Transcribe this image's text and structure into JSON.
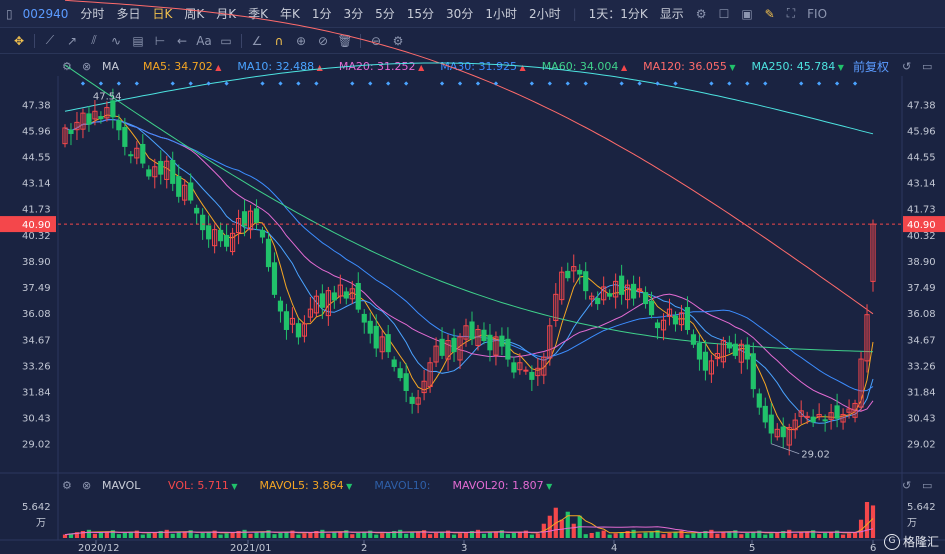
{
  "topbar": {
    "code": "002940",
    "periods": [
      "分时",
      "多日",
      "日K",
      "周K",
      "月K",
      "季K",
      "年K",
      "1分",
      "3分",
      "5分",
      "15分",
      "30分",
      "1小时",
      "2小时"
    ],
    "active_period": "日K",
    "range": "1天：1分K",
    "display": "显示",
    "fio": "FIO"
  },
  "ma_row": {
    "label": "MA",
    "items": [
      {
        "name": "MA5: 34.702",
        "dir": "up",
        "color": "#f5a623"
      },
      {
        "name": "MA10: 32.488",
        "dir": "up",
        "color": "#4aa3ff"
      },
      {
        "name": "MA20: 31.252",
        "dir": "up",
        "color": "#e36bd3"
      },
      {
        "name": "MA30: 31.925",
        "dir": "up",
        "color": "#3c8dff"
      },
      {
        "name": "MA60: 34.004",
        "dir": "up",
        "color": "#3fd18b"
      },
      {
        "name": "MA120: 36.055",
        "dir": "dn",
        "color": "#ff6b6b"
      },
      {
        "name": "MA250: 45.784",
        "dir": "dn",
        "color": "#4de3e0"
      }
    ],
    "adjust": "前复权"
  },
  "vol_row": {
    "label": "MAVOL",
    "items": [
      {
        "name": "VOL: 5.711",
        "dir": "dn",
        "color": "#f4474b"
      },
      {
        "name": "MAVOL5: 3.864",
        "dir": "dn",
        "color": "#f5a623"
      },
      {
        "name": "MAVOL10:",
        "dir": "",
        "color": "#2e5fa8"
      },
      {
        "name": "MAVOL20: 1.807",
        "dir": "dn",
        "color": "#e36bd3"
      }
    ]
  },
  "chart_data": {
    "type": "candlestick",
    "y_ticks": [
      "47.38",
      "45.96",
      "44.55",
      "43.14",
      "41.73",
      "40.32",
      "38.90",
      "37.49",
      "36.08",
      "34.67",
      "33.26",
      "31.84",
      "30.43",
      "29.02"
    ],
    "ylim": [
      27.6,
      48.8
    ],
    "current_price": "40.90",
    "current_value": 40.9,
    "high_label": "47.54",
    "high_value": 47.54,
    "low_label": "29.02",
    "low_value": 29.02,
    "vol_tick": "5.642",
    "vol_unit": "万",
    "vol_max": 7.0,
    "x_labels": [
      "2020/12",
      "2021/01",
      "2",
      "3",
      "4",
      "5",
      "6"
    ],
    "closes": [
      46.1,
      45.8,
      46.4,
      46.9,
      46.3,
      47.0,
      46.6,
      47.2,
      46.7,
      46.0,
      45.1,
      44.6,
      45.0,
      44.2,
      43.5,
      44.0,
      43.6,
      44.3,
      43.1,
      42.4,
      43.0,
      42.2,
      41.5,
      40.6,
      40.1,
      40.6,
      40.0,
      39.7,
      40.4,
      41.2,
      40.8,
      41.6,
      41.0,
      40.2,
      38.6,
      37.1,
      36.2,
      35.2,
      35.8,
      34.8,
      35.5,
      36.3,
      37.0,
      36.4,
      37.3,
      36.8,
      37.6,
      36.9,
      37.4,
      36.3,
      35.6,
      35.0,
      34.2,
      34.8,
      34.0,
      33.2,
      32.6,
      31.9,
      31.2,
      31.5,
      32.4,
      33.4,
      34.3,
      33.8,
      34.6,
      34.0,
      34.8,
      35.4,
      34.7,
      35.2,
      34.6,
      34.1,
      34.8,
      34.3,
      33.6,
      32.9,
      33.4,
      33.0,
      32.5,
      33.1,
      33.7,
      35.4,
      37.1,
      38.3,
      38.0,
      38.6,
      38.2,
      37.3,
      37.0,
      36.6,
      37.5,
      37.0,
      37.8,
      37.1,
      37.6,
      36.9,
      37.4,
      36.6,
      36.0,
      35.3,
      35.7,
      36.3,
      35.5,
      36.1,
      35.2,
      34.4,
      33.6,
      33.0,
      33.5,
      33.9,
      34.6,
      34.2,
      33.8,
      34.4,
      33.6,
      32.0,
      31.0,
      30.2,
      29.6,
      29.8,
      29.4,
      29.9,
      30.3,
      30.8,
      30.5,
      30.2,
      30.6,
      30.3,
      30.7,
      30.4,
      30.6,
      30.9,
      31.2,
      33.6,
      36.0,
      40.9
    ]
  }
}
